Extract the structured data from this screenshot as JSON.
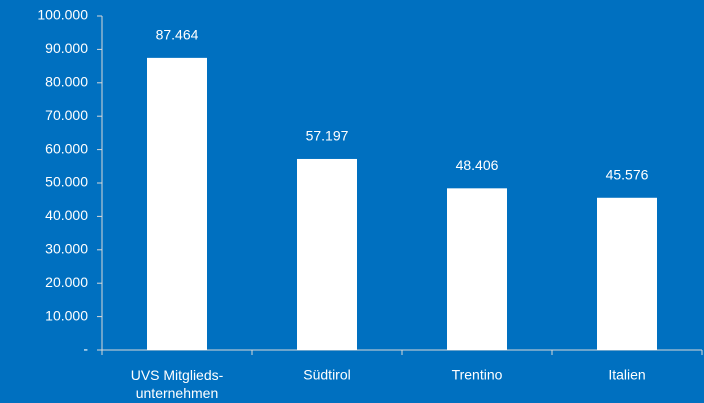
{
  "chart_data": {
    "type": "bar",
    "categories": [
      "UVS Mitglieds-\nunternehmen",
      "Südtirol",
      "Trentino",
      "Italien"
    ],
    "values": [
      87464,
      57197,
      48406,
      45576
    ],
    "value_labels": [
      "87.464",
      "57.197",
      "48.406",
      "45.576"
    ],
    "color": "#ffffff",
    "background": "#0070c0",
    "ylim": [
      0,
      100000
    ],
    "yticks": [
      {
        "value": 0,
        "label": "-"
      },
      {
        "value": 10000,
        "label": "10.000"
      },
      {
        "value": 20000,
        "label": "20.000"
      },
      {
        "value": 30000,
        "label": "30.000"
      },
      {
        "value": 40000,
        "label": "40.000"
      },
      {
        "value": 50000,
        "label": "50.000"
      },
      {
        "value": 60000,
        "label": "60.000"
      },
      {
        "value": 70000,
        "label": "70.000"
      },
      {
        "value": 80000,
        "label": "80.000"
      },
      {
        "value": 90000,
        "label": "90.000"
      },
      {
        "value": 100000,
        "label": "100.000"
      }
    ],
    "grid": false
  }
}
